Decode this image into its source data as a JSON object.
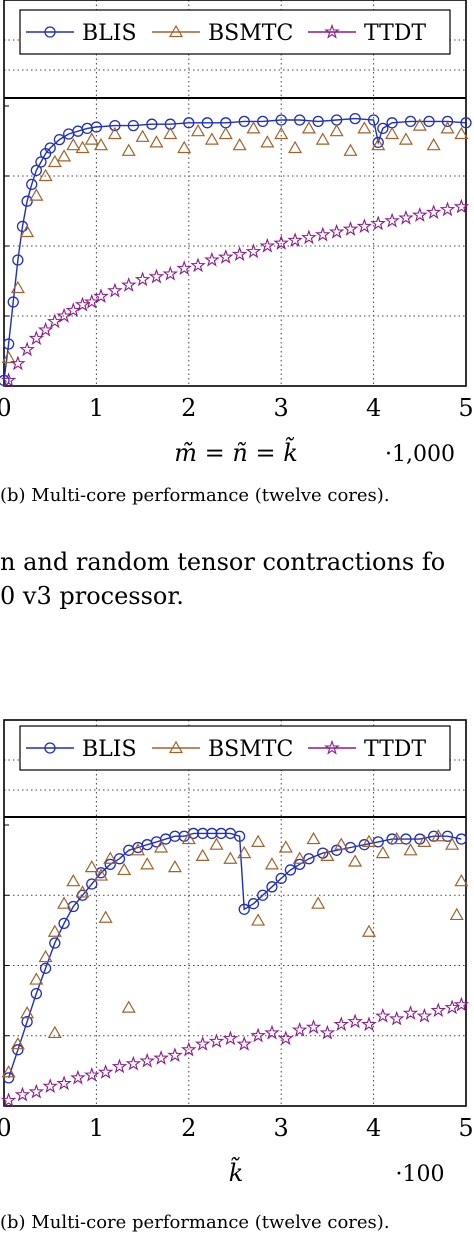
{
  "chart_data": [
    {
      "type": "line",
      "xlabel": "m̃ = ñ = k̃",
      "x_multiplier": "·1,000",
      "xticks": [
        0,
        1,
        2,
        3,
        4,
        5
      ],
      "xlim": [
        0,
        5
      ],
      "legend_position": "top",
      "grid": true,
      "series": [
        {
          "name": "BLIS",
          "marker": "circle",
          "color": "#1f2fbf",
          "x": [
            0,
            0.05,
            0.1,
            0.15,
            0.2,
            0.25,
            0.3,
            0.35,
            0.4,
            0.45,
            0.5,
            0.6,
            0.7,
            0.8,
            0.9,
            1.0,
            1.2,
            1.4,
            1.6,
            1.8,
            2.0,
            2.2,
            2.4,
            2.6,
            2.8,
            3.0,
            3.2,
            3.4,
            3.6,
            3.8,
            4.0,
            4.05,
            4.1,
            4.2,
            4.4,
            4.6,
            4.8,
            5.0
          ],
          "y": [
            0.02,
            0.15,
            0.3,
            0.45,
            0.57,
            0.66,
            0.72,
            0.77,
            0.8,
            0.83,
            0.85,
            0.88,
            0.9,
            0.91,
            0.92,
            0.925,
            0.93,
            0.93,
            0.935,
            0.935,
            0.94,
            0.94,
            0.94,
            0.945,
            0.945,
            0.95,
            0.95,
            0.945,
            0.95,
            0.955,
            0.95,
            0.87,
            0.92,
            0.94,
            0.945,
            0.945,
            0.945,
            0.94
          ]
        },
        {
          "name": "BSMTC",
          "marker": "triangle",
          "color": "#a0632b",
          "x": [
            0.05,
            0.15,
            0.25,
            0.35,
            0.45,
            0.55,
            0.65,
            0.75,
            0.85,
            0.95,
            1.05,
            1.2,
            1.35,
            1.5,
            1.65,
            1.8,
            1.95,
            2.1,
            2.25,
            2.4,
            2.55,
            2.7,
            2.85,
            3.0,
            3.15,
            3.3,
            3.45,
            3.6,
            3.75,
            3.9,
            4.05,
            4.2,
            4.35,
            4.5,
            4.65,
            4.8,
            4.95
          ],
          "y": [
            0.1,
            0.35,
            0.55,
            0.68,
            0.75,
            0.8,
            0.82,
            0.86,
            0.85,
            0.88,
            0.86,
            0.9,
            0.84,
            0.89,
            0.87,
            0.9,
            0.85,
            0.91,
            0.88,
            0.9,
            0.86,
            0.92,
            0.87,
            0.9,
            0.85,
            0.92,
            0.88,
            0.91,
            0.84,
            0.92,
            0.86,
            0.9,
            0.88,
            0.93,
            0.86,
            0.92,
            0.9
          ]
        },
        {
          "name": "TTDT",
          "marker": "star",
          "color": "#8b1a8b",
          "x": [
            0.05,
            0.15,
            0.25,
            0.35,
            0.45,
            0.55,
            0.65,
            0.75,
            0.85,
            0.95,
            1.05,
            1.2,
            1.35,
            1.5,
            1.65,
            1.8,
            1.95,
            2.1,
            2.25,
            2.4,
            2.55,
            2.7,
            2.85,
            3.0,
            3.15,
            3.3,
            3.45,
            3.6,
            3.75,
            3.9,
            4.05,
            4.2,
            4.35,
            4.5,
            4.65,
            4.8,
            4.95
          ],
          "y": [
            0.02,
            0.08,
            0.13,
            0.17,
            0.2,
            0.23,
            0.25,
            0.27,
            0.29,
            0.3,
            0.32,
            0.34,
            0.36,
            0.38,
            0.39,
            0.4,
            0.42,
            0.43,
            0.45,
            0.46,
            0.47,
            0.48,
            0.5,
            0.51,
            0.52,
            0.53,
            0.54,
            0.55,
            0.56,
            0.57,
            0.58,
            0.59,
            0.6,
            0.61,
            0.62,
            0.63,
            0.64
          ]
        }
      ]
    },
    {
      "type": "line",
      "xlabel": "k̃",
      "x_multiplier": "·100",
      "xticks": [
        0,
        1,
        2,
        3,
        4,
        5
      ],
      "xlim": [
        0,
        5
      ],
      "legend_position": "top",
      "grid": true,
      "series": [
        {
          "name": "BLIS",
          "marker": "circle",
          "color": "#1f2fbf",
          "x": [
            0.05,
            0.15,
            0.25,
            0.35,
            0.45,
            0.55,
            0.65,
            0.75,
            0.85,
            0.95,
            1.05,
            1.15,
            1.25,
            1.35,
            1.45,
            1.55,
            1.65,
            1.75,
            1.85,
            1.95,
            2.05,
            2.15,
            2.25,
            2.35,
            2.45,
            2.55,
            2.6,
            2.7,
            2.8,
            2.9,
            3.0,
            3.1,
            3.2,
            3.3,
            3.45,
            3.6,
            3.75,
            3.9,
            4.05,
            4.2,
            4.35,
            4.5,
            4.65,
            4.8,
            4.95
          ],
          "y": [
            0.1,
            0.2,
            0.3,
            0.4,
            0.49,
            0.58,
            0.65,
            0.71,
            0.75,
            0.79,
            0.83,
            0.86,
            0.88,
            0.91,
            0.92,
            0.93,
            0.94,
            0.95,
            0.96,
            0.96,
            0.97,
            0.97,
            0.97,
            0.97,
            0.97,
            0.96,
            0.7,
            0.72,
            0.75,
            0.78,
            0.81,
            0.84,
            0.86,
            0.88,
            0.9,
            0.91,
            0.92,
            0.93,
            0.94,
            0.95,
            0.95,
            0.95,
            0.96,
            0.96,
            0.95
          ]
        },
        {
          "name": "BSMTC",
          "marker": "triangle",
          "color": "#a0632b",
          "x": [
            0.05,
            0.15,
            0.25,
            0.35,
            0.45,
            0.55,
            0.65,
            0.75,
            0.85,
            0.95,
            1.05,
            1.15,
            1.3,
            1.45,
            1.55,
            1.7,
            1.85,
            2.0,
            2.15,
            2.3,
            2.45,
            2.6,
            2.75,
            2.9,
            3.05,
            3.2,
            3.35,
            3.5,
            3.65,
            3.8,
            3.95,
            4.1,
            4.25,
            4.4,
            4.55,
            4.7,
            4.85,
            4.95,
            0.55,
            1.1,
            1.35,
            2.75,
            3.4,
            3.95,
            4.9
          ],
          "y": [
            0.12,
            0.22,
            0.33,
            0.45,
            0.53,
            0.62,
            0.72,
            0.8,
            0.76,
            0.85,
            0.82,
            0.88,
            0.84,
            0.91,
            0.86,
            0.92,
            0.85,
            0.95,
            0.89,
            0.93,
            0.88,
            0.9,
            0.94,
            0.86,
            0.92,
            0.88,
            0.95,
            0.89,
            0.93,
            0.87,
            0.94,
            0.9,
            0.95,
            0.91,
            0.94,
            0.96,
            0.93,
            0.8,
            0.26,
            0.67,
            0.35,
            0.66,
            0.72,
            0.62,
            0.68
          ]
        },
        {
          "name": "TTDT",
          "marker": "star",
          "color": "#8b1a8b",
          "x": [
            0.05,
            0.2,
            0.35,
            0.5,
            0.65,
            0.8,
            0.95,
            1.1,
            1.25,
            1.4,
            1.55,
            1.7,
            1.85,
            2.0,
            2.15,
            2.3,
            2.45,
            2.6,
            2.75,
            2.9,
            3.05,
            3.2,
            3.35,
            3.5,
            3.65,
            3.8,
            3.95,
            4.1,
            4.25,
            4.4,
            4.55,
            4.7,
            4.85,
            4.95
          ],
          "y": [
            0.02,
            0.04,
            0.05,
            0.07,
            0.08,
            0.1,
            0.11,
            0.12,
            0.14,
            0.15,
            0.16,
            0.17,
            0.18,
            0.2,
            0.22,
            0.23,
            0.24,
            0.22,
            0.25,
            0.26,
            0.24,
            0.27,
            0.28,
            0.26,
            0.29,
            0.3,
            0.29,
            0.32,
            0.31,
            0.33,
            0.32,
            0.34,
            0.35,
            0.36
          ]
        }
      ]
    }
  ],
  "captions": {
    "top": "(b) Multi-core performance (twelve cores).",
    "bottom": "(b) Multi-core performance (twelve cores)."
  },
  "body_text": {
    "line1": "n and random tensor contractions fo",
    "line2": "0 v3 processor."
  }
}
